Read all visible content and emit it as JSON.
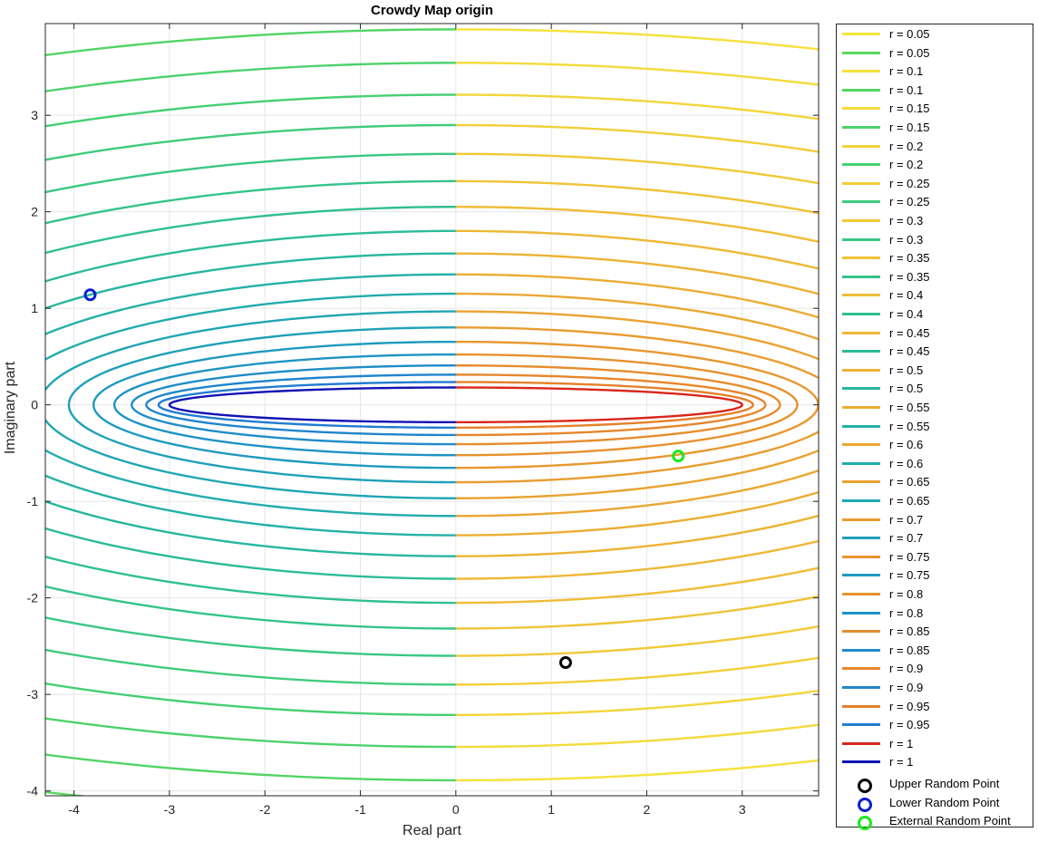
{
  "chart_data": {
    "type": "line",
    "title": "Crowdy Map origin",
    "xlabel": "Real part",
    "ylabel": "Imaginary part",
    "xlim": [
      -4.3,
      3.8
    ],
    "ylim": [
      -4.05,
      3.95
    ],
    "xticks": [
      -4,
      -3,
      -2,
      -1,
      0,
      1,
      2,
      3
    ],
    "yticks": [
      -4,
      -3,
      -2,
      -1,
      0,
      1,
      2,
      3
    ],
    "grid": true,
    "legend_location": "outside-right",
    "series": [
      {
        "name": "r = 0.05",
        "r": 0.05,
        "side": "right",
        "color": "#f5e53c"
      },
      {
        "name": "r = 0.05",
        "r": 0.05,
        "side": "left",
        "color": "#58d85e"
      },
      {
        "name": "r = 0.1",
        "r": 0.1,
        "side": "right",
        "color": "#f5e13b"
      },
      {
        "name": "r = 0.1",
        "r": 0.1,
        "side": "left",
        "color": "#52d564"
      },
      {
        "name": "r = 0.15",
        "r": 0.15,
        "side": "right",
        "color": "#f4db3b"
      },
      {
        "name": "r = 0.15",
        "r": 0.15,
        "side": "left",
        "color": "#4cd26c"
      },
      {
        "name": "r = 0.2",
        "r": 0.2,
        "side": "right",
        "color": "#f3d53a"
      },
      {
        "name": "r = 0.2",
        "r": 0.2,
        "side": "left",
        "color": "#46cf74"
      },
      {
        "name": "r = 0.25",
        "r": 0.25,
        "side": "right",
        "color": "#f2ce39"
      },
      {
        "name": "r = 0.25",
        "r": 0.25,
        "side": "left",
        "color": "#40cb7c"
      },
      {
        "name": "r = 0.3",
        "r": 0.3,
        "side": "right",
        "color": "#f1c938"
      },
      {
        "name": "r = 0.3",
        "r": 0.3,
        "side": "left",
        "color": "#3ac784"
      },
      {
        "name": "r = 0.35",
        "r": 0.35,
        "side": "right",
        "color": "#f0c337"
      },
      {
        "name": "r = 0.35",
        "r": 0.35,
        "side": "left",
        "color": "#35c38b"
      },
      {
        "name": "r = 0.4",
        "r": 0.4,
        "side": "right",
        "color": "#efbd36"
      },
      {
        "name": "r = 0.4",
        "r": 0.4,
        "side": "left",
        "color": "#30bf92"
      },
      {
        "name": "r = 0.45",
        "r": 0.45,
        "side": "right",
        "color": "#eeb835"
      },
      {
        "name": "r = 0.45",
        "r": 0.45,
        "side": "left",
        "color": "#2cbb99"
      },
      {
        "name": "r = 0.5",
        "r": 0.5,
        "side": "right",
        "color": "#edb234"
      },
      {
        "name": "r = 0.5",
        "r": 0.5,
        "side": "left",
        "color": "#28b6a0"
      },
      {
        "name": "r = 0.55",
        "r": 0.55,
        "side": "right",
        "color": "#ecad33"
      },
      {
        "name": "r = 0.55",
        "r": 0.55,
        "side": "left",
        "color": "#25b1a7"
      },
      {
        "name": "r = 0.6",
        "r": 0.6,
        "side": "right",
        "color": "#eba732"
      },
      {
        "name": "r = 0.6",
        "r": 0.6,
        "side": "left",
        "color": "#22acad"
      },
      {
        "name": "r = 0.65",
        "r": 0.65,
        "side": "right",
        "color": "#eaa231"
      },
      {
        "name": "r = 0.65",
        "r": 0.65,
        "side": "left",
        "color": "#20a6b3"
      },
      {
        "name": "r = 0.7",
        "r": 0.7,
        "side": "right",
        "color": "#e99c30"
      },
      {
        "name": "r = 0.7",
        "r": 0.7,
        "side": "left",
        "color": "#1fa0b9"
      },
      {
        "name": "r = 0.75",
        "r": 0.75,
        "side": "right",
        "color": "#e8972f"
      },
      {
        "name": "r = 0.75",
        "r": 0.75,
        "side": "left",
        "color": "#1e9abf"
      },
      {
        "name": "r = 0.8",
        "r": 0.8,
        "side": "right",
        "color": "#e7912e"
      },
      {
        "name": "r = 0.8",
        "r": 0.8,
        "side": "left",
        "color": "#1e93c4"
      },
      {
        "name": "r = 0.85",
        "r": 0.85,
        "side": "right",
        "color": "#e68c2d"
      },
      {
        "name": "r = 0.85",
        "r": 0.85,
        "side": "left",
        "color": "#1f8cc8"
      },
      {
        "name": "r = 0.9",
        "r": 0.9,
        "side": "right",
        "color": "#e5862c"
      },
      {
        "name": "r = 0.9",
        "r": 0.9,
        "side": "left",
        "color": "#2084cc"
      },
      {
        "name": "r = 0.95",
        "r": 0.95,
        "side": "right",
        "color": "#e4812b"
      },
      {
        "name": "r = 0.95",
        "r": 0.95,
        "side": "left",
        "color": "#227cd0"
      },
      {
        "name": "r = 1",
        "r": 1,
        "side": "right",
        "color": "#d9261c"
      },
      {
        "name": "r = 1",
        "r": 1,
        "side": "left",
        "color": "#1212b4"
      }
    ],
    "points": [
      {
        "name": "Upper Random Point",
        "x": 1.15,
        "y": -2.67,
        "color": "#000000"
      },
      {
        "name": "Lower Random Point",
        "x": -3.83,
        "y": 1.14,
        "color": "#0a1ed2"
      },
      {
        "name": "External Random Point",
        "x": 2.33,
        "y": -0.53,
        "color": "#1be81b"
      }
    ]
  }
}
